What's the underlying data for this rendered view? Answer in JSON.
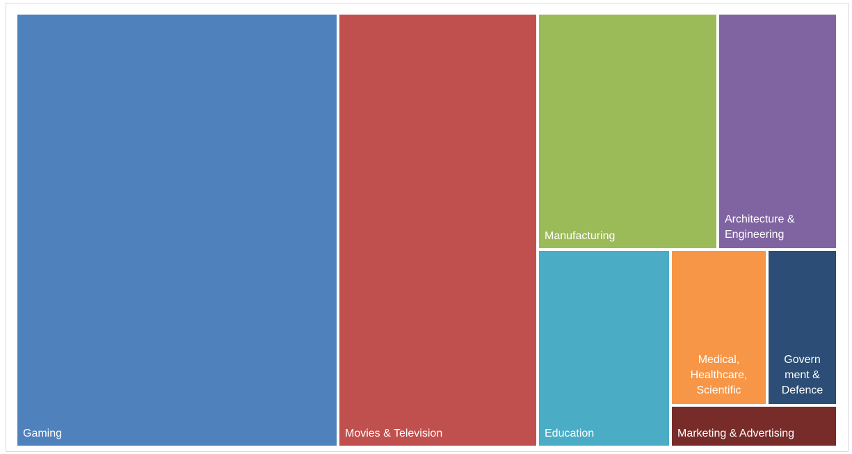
{
  "chart_data": {
    "type": "treemap",
    "title": "",
    "items": [
      {
        "name": "Gaming",
        "label": "Gaming",
        "color": "#4f81bd"
      },
      {
        "name": "Movies & Television",
        "label": "Movies & Television",
        "color": "#c0504d"
      },
      {
        "name": "Manufacturing",
        "label": "Manufacturing",
        "color": "#9bbb59"
      },
      {
        "name": "Architecture & Engineering",
        "label": "Architecture &\nEngineering",
        "color": "#8064a2"
      },
      {
        "name": "Education",
        "label": "Education",
        "color": "#4bacc6"
      },
      {
        "name": "Medical, Healthcare, Scientific",
        "label": "Medical,\nHealthcare,\nScientific",
        "color": "#f79646"
      },
      {
        "name": "Government & Defence",
        "label": "Govern\nment &\nDefence",
        "color": "#2c4d75"
      },
      {
        "name": "Marketing & Advertising",
        "label": "Marketing & Advertising",
        "color": "#772c2a"
      }
    ]
  }
}
